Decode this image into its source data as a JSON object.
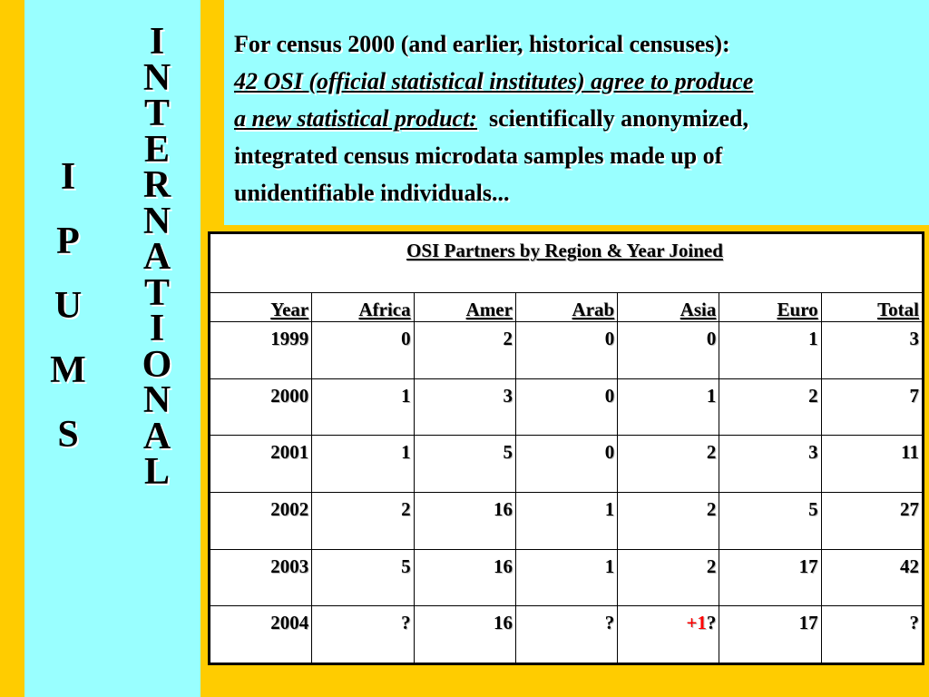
{
  "sidebar": {
    "ipums_letters": [
      "I",
      "P",
      "U",
      "M",
      "S"
    ],
    "international_letters": [
      "I",
      "N",
      "T",
      "E",
      "R",
      "N",
      "A",
      "T",
      "I",
      "O",
      "N",
      "A",
      "L"
    ]
  },
  "intro": {
    "line1": "For census 2000 (and earlier, historical censuses):",
    "line2": "42 OSI (official statistical institutes) agree to produce",
    "line3_em": "a new statistical product:",
    "line3_rest": "  scientifically anonymized,",
    "line4": "integrated census microdata samples made up of",
    "line5": "unidentifiable individuals..."
  },
  "table": {
    "caption": "OSI Partners by Region & Year Joined",
    "headers": [
      "Year",
      "Africa",
      "Amer",
      "Arab",
      "Asia",
      "Euro",
      "Total"
    ],
    "rows": [
      [
        "1999",
        "0",
        "2",
        "0",
        "0",
        "1",
        "3"
      ],
      [
        "2000",
        "1",
        "3",
        "0",
        "1",
        "2",
        "7"
      ],
      [
        "2001",
        "1",
        "5",
        "0",
        "2",
        "3",
        "11"
      ],
      [
        "2002",
        "2",
        "16",
        "1",
        "2",
        "5",
        "27"
      ],
      [
        "2003",
        "5",
        "16",
        "1",
        "2",
        "17",
        "42"
      ],
      [
        "2004",
        "?",
        "16",
        "?",
        "",
        "17",
        "?"
      ]
    ],
    "asia_2004_highlight": "+1",
    "asia_2004_suffix": "?"
  },
  "colors": {
    "background": "#FFCC00",
    "panel": "#99FFFF",
    "highlight": "#FF0000"
  }
}
